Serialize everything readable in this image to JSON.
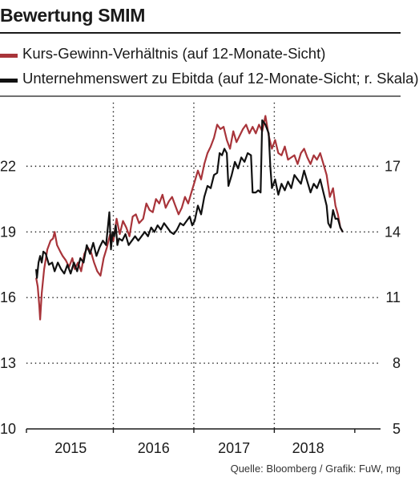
{
  "chart_data": {
    "type": "line",
    "title": "Bewertung SMIM",
    "x_labels": [
      "2015",
      "2016",
      "2017",
      "2018"
    ],
    "y_left": {
      "ticks": [
        10,
        13,
        16,
        19,
        22
      ],
      "labels": [
        "10",
        "13",
        "16",
        "19",
        "22"
      ],
      "range": [
        10,
        25.2
      ]
    },
    "y_right": {
      "ticks": [
        5,
        8,
        11,
        14,
        17
      ],
      "labels": [
        "5",
        "8",
        "11",
        "14",
        "17"
      ],
      "range": [
        5,
        20.2
      ],
      "note": "r. Skala"
    },
    "x_range": [
      2014.55,
      2018.95
    ],
    "grid": {
      "horizontal": "dotted",
      "vertical": "dotted at year boundaries"
    },
    "series": [
      {
        "name": "Kurs-Gewinn-Verhältnis (auf 12-Monate-Sicht)",
        "axis": "left",
        "color": "#a8343a",
        "points": [
          [
            2014.67,
            16.9
          ],
          [
            2014.69,
            16.5
          ],
          [
            2014.71,
            15.6
          ],
          [
            2014.72,
            15.0
          ],
          [
            2014.74,
            16.2
          ],
          [
            2014.77,
            17.3
          ],
          [
            2014.81,
            18.2
          ],
          [
            2014.85,
            18.6
          ],
          [
            2014.88,
            18.7
          ],
          [
            2014.9,
            19.0
          ],
          [
            2014.93,
            18.4
          ],
          [
            2014.97,
            18.1
          ],
          [
            2015.0,
            17.9
          ],
          [
            2015.04,
            17.7
          ],
          [
            2015.08,
            17.4
          ],
          [
            2015.12,
            17.8
          ],
          [
            2015.15,
            17.3
          ],
          [
            2015.19,
            17.6
          ],
          [
            2015.23,
            17.2
          ],
          [
            2015.27,
            18.0
          ],
          [
            2015.31,
            18.3
          ],
          [
            2015.35,
            18.1
          ],
          [
            2015.39,
            17.6
          ],
          [
            2015.43,
            17.2
          ],
          [
            2015.47,
            17.0
          ],
          [
            2015.51,
            17.8
          ],
          [
            2015.55,
            18.3
          ],
          [
            2015.59,
            18.9
          ],
          [
            2015.63,
            18.6
          ],
          [
            2015.67,
            19.6
          ],
          [
            2015.71,
            18.9
          ],
          [
            2015.75,
            19.5
          ],
          [
            2015.79,
            19.2
          ],
          [
            2015.83,
            18.8
          ],
          [
            2015.87,
            19.7
          ],
          [
            2015.91,
            19.8
          ],
          [
            2015.95,
            19.4
          ],
          [
            2016.0,
            19.6
          ],
          [
            2016.04,
            20.3
          ],
          [
            2016.08,
            20.0
          ],
          [
            2016.12,
            19.9
          ],
          [
            2016.16,
            20.5
          ],
          [
            2016.2,
            20.3
          ],
          [
            2016.24,
            20.7
          ],
          [
            2016.28,
            20.1
          ],
          [
            2016.32,
            20.4
          ],
          [
            2016.36,
            20.6
          ],
          [
            2016.4,
            20.2
          ],
          [
            2016.44,
            19.8
          ],
          [
            2016.48,
            20.1
          ],
          [
            2016.52,
            20.6
          ],
          [
            2016.56,
            20.3
          ],
          [
            2016.6,
            20.8
          ],
          [
            2016.64,
            21.3
          ],
          [
            2016.68,
            21.8
          ],
          [
            2016.72,
            21.4
          ],
          [
            2016.76,
            22.1
          ],
          [
            2016.8,
            22.6
          ],
          [
            2016.84,
            22.9
          ],
          [
            2016.88,
            23.3
          ],
          [
            2016.92,
            23.9
          ],
          [
            2016.96,
            23.7
          ],
          [
            2017.0,
            23.8
          ],
          [
            2017.04,
            23.2
          ],
          [
            2017.08,
            22.8
          ],
          [
            2017.12,
            23.6
          ],
          [
            2017.16,
            23.1
          ],
          [
            2017.2,
            23.4
          ],
          [
            2017.24,
            23.7
          ],
          [
            2017.28,
            23.9
          ],
          [
            2017.32,
            23.5
          ],
          [
            2017.36,
            23.8
          ],
          [
            2017.4,
            23.5
          ],
          [
            2017.44,
            23.9
          ],
          [
            2017.48,
            23.6
          ],
          [
            2017.52,
            24.3
          ],
          [
            2017.56,
            23.4
          ],
          [
            2017.6,
            22.8
          ],
          [
            2017.64,
            23.2
          ],
          [
            2017.68,
            22.6
          ],
          [
            2017.72,
            22.5
          ],
          [
            2017.76,
            22.9
          ],
          [
            2017.8,
            22.3
          ],
          [
            2017.84,
            22.4
          ],
          [
            2017.88,
            22.5
          ],
          [
            2017.92,
            22.1
          ],
          [
            2017.96,
            22.6
          ],
          [
            2018.0,
            22.8
          ],
          [
            2018.04,
            22.4
          ],
          [
            2018.08,
            22.1
          ],
          [
            2018.12,
            22.5
          ],
          [
            2018.16,
            22.3
          ],
          [
            2018.2,
            22.6
          ],
          [
            2018.24,
            22.1
          ],
          [
            2018.28,
            21.6
          ],
          [
            2018.32,
            20.6
          ],
          [
            2018.36,
            21.0
          ],
          [
            2018.39,
            20.2
          ],
          [
            2018.42,
            19.8
          ],
          [
            2018.45,
            19.2
          ],
          [
            2018.48,
            19.0
          ]
        ]
      },
      {
        "name": "Unternehmenswert zu Ebitda (auf 12-Monate-Sicht; r. Skala)",
        "axis": "right",
        "color": "#111111",
        "points": [
          [
            2014.67,
            12.3
          ],
          [
            2014.68,
            11.9
          ],
          [
            2014.7,
            12.6
          ],
          [
            2014.72,
            12.9
          ],
          [
            2014.74,
            12.6
          ],
          [
            2014.76,
            13.1
          ],
          [
            2014.79,
            13.0
          ],
          [
            2014.83,
            12.5
          ],
          [
            2014.87,
            12.6
          ],
          [
            2014.9,
            12.2
          ],
          [
            2014.94,
            12.6
          ],
          [
            2014.98,
            12.3
          ],
          [
            2015.02,
            12.1
          ],
          [
            2015.06,
            12.5
          ],
          [
            2015.1,
            12.1
          ],
          [
            2015.14,
            12.6
          ],
          [
            2015.18,
            12.2
          ],
          [
            2015.22,
            12.8
          ],
          [
            2015.26,
            12.6
          ],
          [
            2015.3,
            13.4
          ],
          [
            2015.34,
            13.0
          ],
          [
            2015.38,
            13.5
          ],
          [
            2015.42,
            12.9
          ],
          [
            2015.46,
            13.3
          ],
          [
            2015.5,
            13.6
          ],
          [
            2015.54,
            13.4
          ],
          [
            2015.58,
            14.9
          ],
          [
            2015.6,
            13.2
          ],
          [
            2015.62,
            14.0
          ],
          [
            2015.64,
            13.8
          ],
          [
            2015.66,
            14.3
          ],
          [
            2015.68,
            13.4
          ],
          [
            2015.7,
            13.7
          ],
          [
            2015.74,
            13.6
          ],
          [
            2015.78,
            13.9
          ],
          [
            2015.82,
            13.4
          ],
          [
            2015.86,
            13.6
          ],
          [
            2015.9,
            13.8
          ],
          [
            2015.94,
            13.6
          ],
          [
            2015.98,
            13.8
          ],
          [
            2016.02,
            14.0
          ],
          [
            2016.06,
            13.8
          ],
          [
            2016.1,
            14.2
          ],
          [
            2016.14,
            14.0
          ],
          [
            2016.18,
            14.3
          ],
          [
            2016.22,
            14.1
          ],
          [
            2016.26,
            14.4
          ],
          [
            2016.3,
            14.2
          ],
          [
            2016.34,
            14.0
          ],
          [
            2016.38,
            13.9
          ],
          [
            2016.42,
            14.1
          ],
          [
            2016.46,
            14.4
          ],
          [
            2016.5,
            14.3
          ],
          [
            2016.54,
            14.5
          ],
          [
            2016.58,
            14.7
          ],
          [
            2016.61,
            14.3
          ],
          [
            2016.64,
            14.5
          ],
          [
            2016.68,
            15.2
          ],
          [
            2016.72,
            14.8
          ],
          [
            2016.76,
            15.6
          ],
          [
            2016.8,
            16.1
          ],
          [
            2016.84,
            16.0
          ],
          [
            2016.88,
            16.6
          ],
          [
            2016.92,
            16.7
          ],
          [
            2016.95,
            17.6
          ],
          [
            2016.98,
            17.5
          ],
          [
            2017.01,
            17.8
          ],
          [
            2017.04,
            17.6
          ],
          [
            2017.06,
            16.1
          ],
          [
            2017.1,
            16.6
          ],
          [
            2017.14,
            17.2
          ],
          [
            2017.18,
            16.9
          ],
          [
            2017.22,
            17.4
          ],
          [
            2017.26,
            17.2
          ],
          [
            2017.3,
            17.6
          ],
          [
            2017.34,
            17.5
          ],
          [
            2017.36,
            15.8
          ],
          [
            2017.4,
            15.8
          ],
          [
            2017.43,
            15.9
          ],
          [
            2017.46,
            15.8
          ],
          [
            2017.48,
            19.1
          ],
          [
            2017.52,
            18.9
          ],
          [
            2017.56,
            18.5
          ],
          [
            2017.58,
            17.0
          ],
          [
            2017.6,
            16.0
          ],
          [
            2017.64,
            16.4
          ],
          [
            2017.68,
            15.7
          ],
          [
            2017.72,
            16.2
          ],
          [
            2017.76,
            15.9
          ],
          [
            2017.8,
            16.3
          ],
          [
            2017.84,
            16.0
          ],
          [
            2017.88,
            16.6
          ],
          [
            2017.92,
            16.4
          ],
          [
            2017.96,
            16.2
          ],
          [
            2018.0,
            16.8
          ],
          [
            2018.04,
            16.3
          ],
          [
            2018.08,
            15.8
          ],
          [
            2018.12,
            16.2
          ],
          [
            2018.16,
            16.0
          ],
          [
            2018.2,
            16.4
          ],
          [
            2018.24,
            15.8
          ],
          [
            2018.28,
            15.2
          ],
          [
            2018.3,
            14.4
          ],
          [
            2018.33,
            14.2
          ],
          [
            2018.36,
            15.0
          ],
          [
            2018.39,
            14.6
          ],
          [
            2018.42,
            14.6
          ],
          [
            2018.45,
            14.2
          ],
          [
            2018.48,
            14.0
          ]
        ]
      }
    ]
  },
  "legend": {
    "items": [
      {
        "label": "Kurs-Gewinn-Verhältnis (auf 12-Monate-Sicht)",
        "color": "#a8343a"
      },
      {
        "label": "Unternehmenswert zu Ebitda (auf 12-Monate-Sicht; r. Skala)",
        "color": "#111111"
      }
    ]
  },
  "footer": {
    "source": "Quelle: Bloomberg / Grafik: FuW, mg"
  }
}
